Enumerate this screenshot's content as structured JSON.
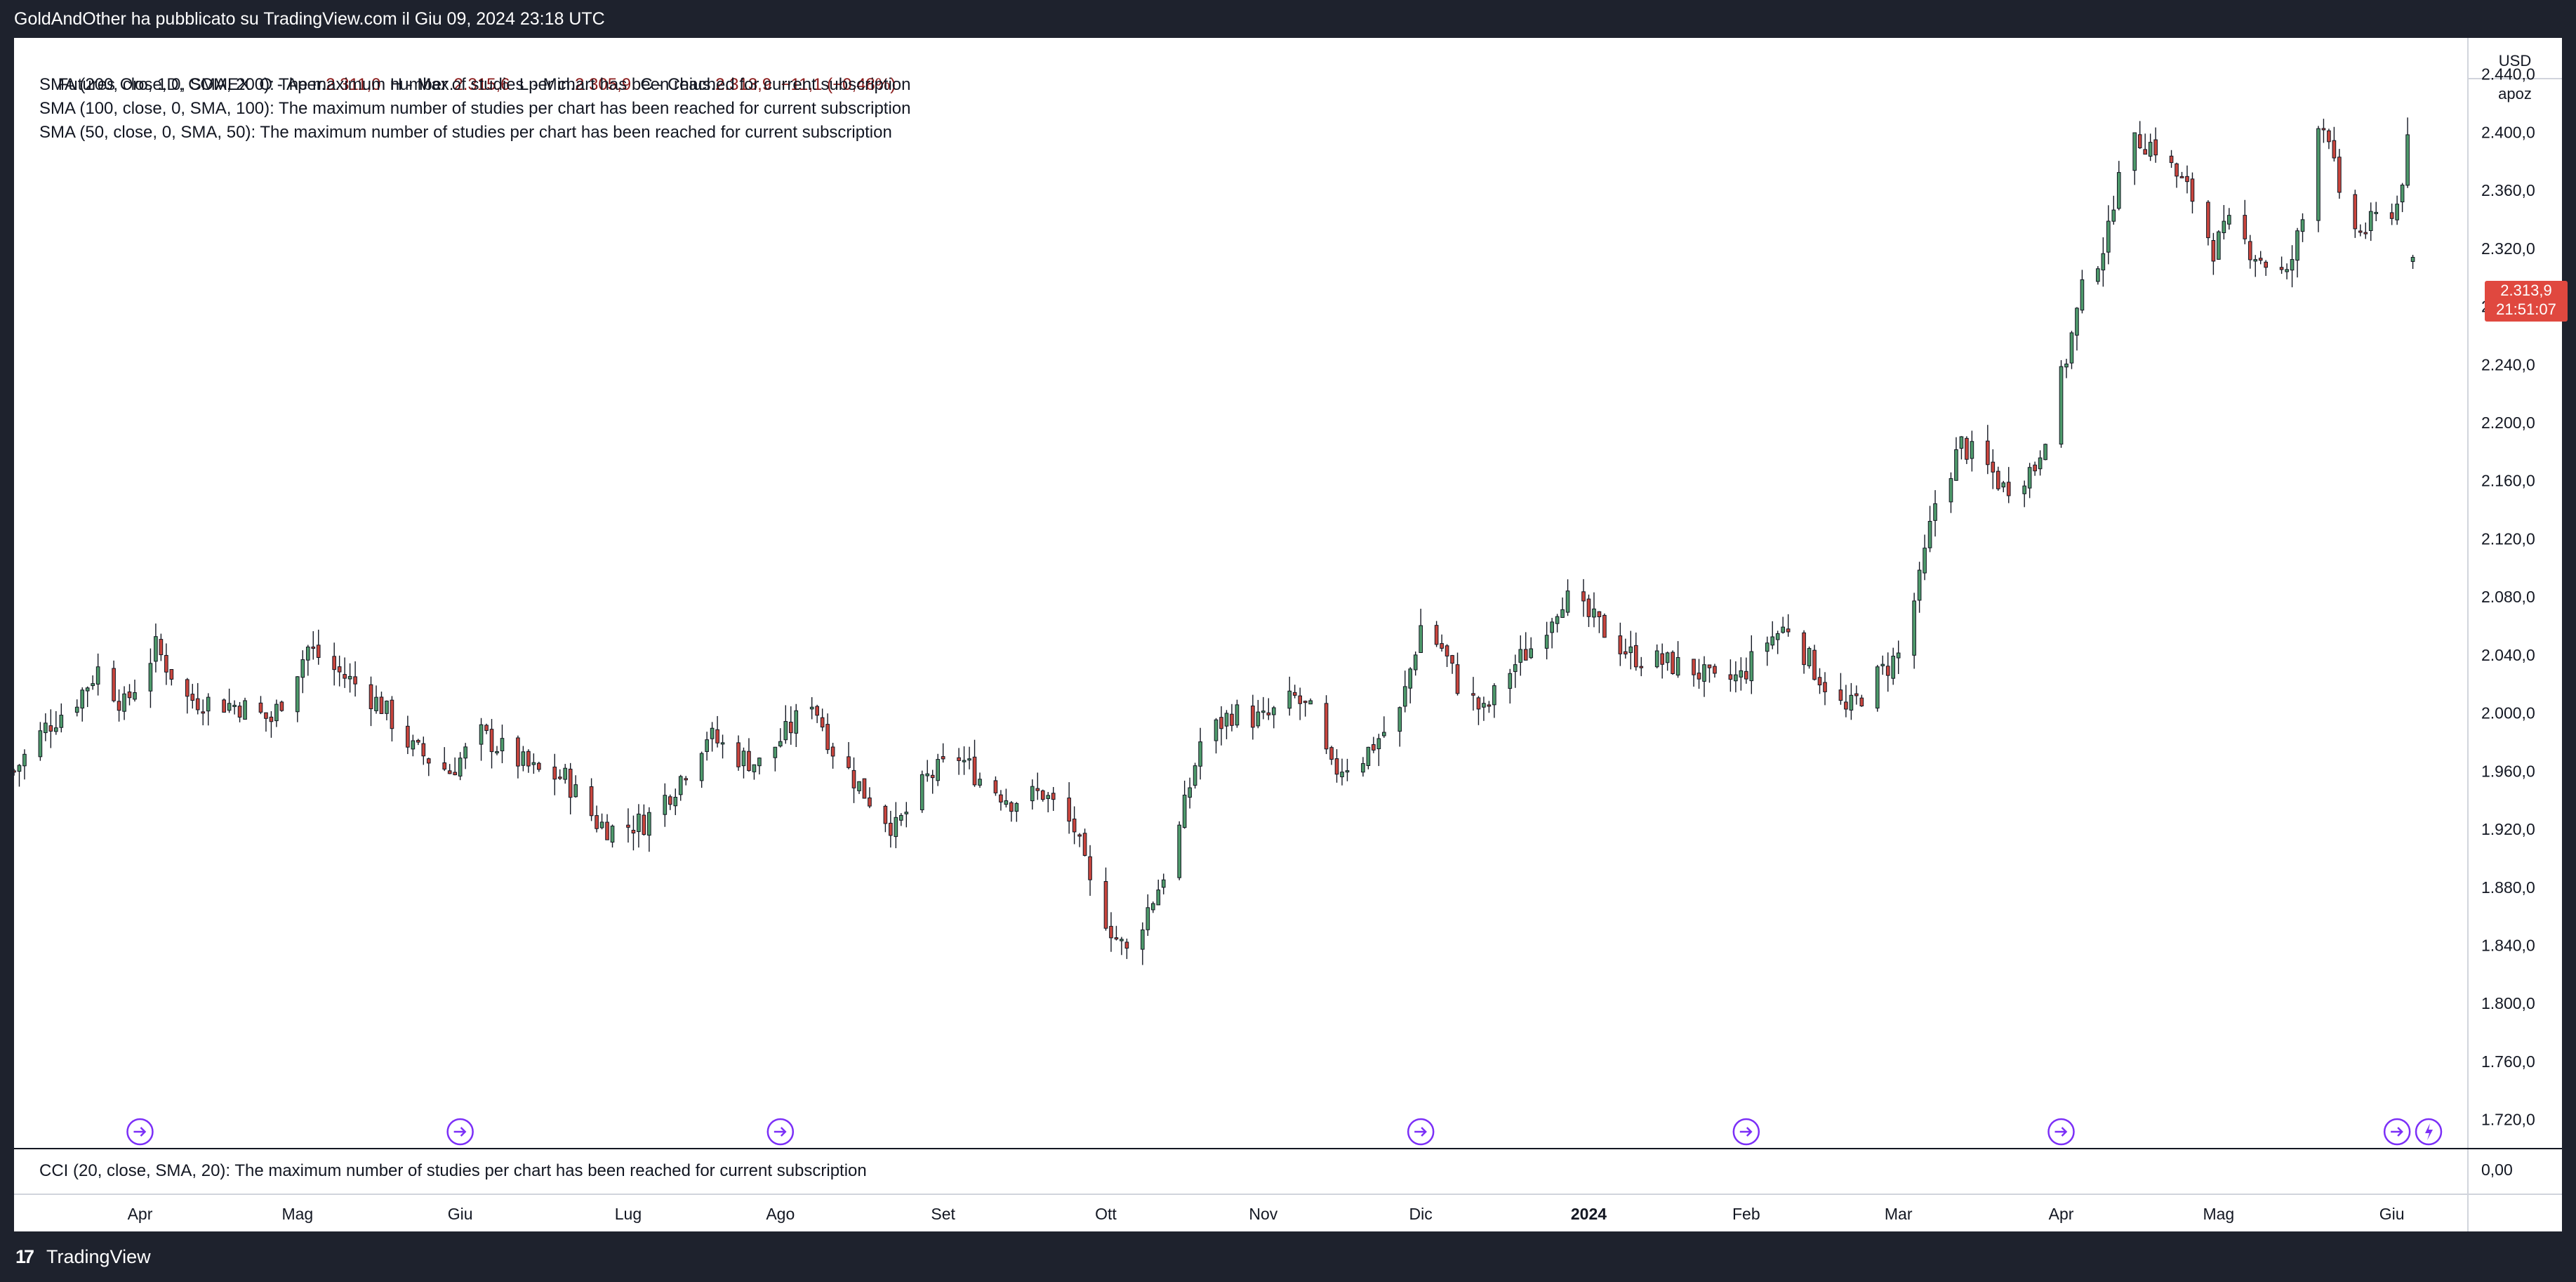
{
  "header": {
    "published": "GoldAndOther ha pubblicato su TradingView.com il Giu 09, 2024 23:18 UTC"
  },
  "legend": {
    "symbol": "Futures Oro, 1D, COMEX",
    "open_label": "O - Aper.",
    "open": "2.311,0",
    "high_label": "H - Max.",
    "high": "2.315,6",
    "low_label": "L - Min.",
    "low": "2.305,9",
    "close_label": "C - Chius.",
    "close": "2.313,9",
    "change": "−11,1 (−0,48%)",
    "studies": [
      "SMA (200, close, 0, SMA, 200): The maximum number of studies per chart has been reached for current subscription",
      "SMA (100, close, 0, SMA, 100): The maximum number of studies per chart has been reached for current subscription",
      "SMA (50, close, 0, SMA, 50): The maximum number of studies per chart has been reached for current subscription"
    ],
    "cci": "CCI (20, close, SMA, 20): The maximum number of studies per chart has been reached for current subscription"
  },
  "price_scale": {
    "currency": "USD",
    "label": "apoz",
    "cci_zero": "0,00"
  },
  "last_price": {
    "value": "2.313,9",
    "countdown": "21:51:07"
  },
  "footer": {
    "logo": "17",
    "brand": "TradingView"
  },
  "colors": {
    "up": "#4e9a6b",
    "down": "#c9453d",
    "marker": "#7b2ff7",
    "price_tag": "#e0483f"
  },
  "chart_data": {
    "type": "candlestick",
    "title": "Futures Oro, 1D, COMEX",
    "currency": "USD",
    "ylim": [
      1700,
      2465
    ],
    "y_ticks": [
      1720,
      1760,
      1800,
      1840,
      1880,
      1920,
      1960,
      2000,
      2040,
      2080,
      2120,
      2160,
      2200,
      2240,
      2280,
      2320,
      2360,
      2400,
      2440
    ],
    "y_tick_labels": [
      "1.720,0",
      "1.760,0",
      "1.800,0",
      "1.840,0",
      "1.880,0",
      "1.920,0",
      "1.960,0",
      "2.000,0",
      "2.040,0",
      "2.080,0",
      "2.120,0",
      "2.160,0",
      "2.200,0",
      "2.240,0",
      "2.280,0",
      "2.320,0",
      "2.360,0",
      "2.400,0",
      "2.440,0"
    ],
    "x_range": [
      "2023-03-08",
      "2024-06-10"
    ],
    "x_ticks": [
      {
        "label": "Apr",
        "date": "2023-04-01"
      },
      {
        "label": "Mag",
        "date": "2023-05-01"
      },
      {
        "label": "Giu",
        "date": "2023-06-01"
      },
      {
        "label": "Lug",
        "date": "2023-07-03"
      },
      {
        "label": "Ago",
        "date": "2023-08-01"
      },
      {
        "label": "Set",
        "date": "2023-09-01"
      },
      {
        "label": "Ott",
        "date": "2023-10-02"
      },
      {
        "label": "Nov",
        "date": "2023-11-01"
      },
      {
        "label": "Dic",
        "date": "2023-12-01"
      },
      {
        "label": "2024",
        "date": "2024-01-02",
        "bold": true
      },
      {
        "label": "Feb",
        "date": "2024-02-01"
      },
      {
        "label": "Mar",
        "date": "2024-03-01"
      },
      {
        "label": "Apr",
        "date": "2024-04-01"
      },
      {
        "label": "Mag",
        "date": "2024-05-01"
      },
      {
        "label": "Giu",
        "date": "2024-06-03"
      }
    ],
    "closes": [
      [
        "2023-03-08",
        1960
      ],
      [
        "2023-03-14",
        1990
      ],
      [
        "2023-03-20",
        2010
      ],
      [
        "2023-03-24",
        2030
      ],
      [
        "2023-03-29",
        2005
      ],
      [
        "2023-04-04",
        2045
      ],
      [
        "2023-04-10",
        2010
      ],
      [
        "2023-04-14",
        2008
      ],
      [
        "2023-04-20",
        2005
      ],
      [
        "2023-04-26",
        1995
      ],
      [
        "2023-05-03",
        2045
      ],
      [
        "2023-05-08",
        2030
      ],
      [
        "2023-05-12",
        2020
      ],
      [
        "2023-05-17",
        2005
      ],
      [
        "2023-05-23",
        1975
      ],
      [
        "2023-05-30",
        1960
      ],
      [
        "2023-06-05",
        1985
      ],
      [
        "2023-06-09",
        1975
      ],
      [
        "2023-06-15",
        1960
      ],
      [
        "2023-06-21",
        1955
      ],
      [
        "2023-06-27",
        1925
      ],
      [
        "2023-06-30",
        1920
      ],
      [
        "2023-07-06",
        1925
      ],
      [
        "2023-07-12",
        1950
      ],
      [
        "2023-07-18",
        1985
      ],
      [
        "2023-07-24",
        1970
      ],
      [
        "2023-07-28",
        1965
      ],
      [
        "2023-08-03",
        1990
      ],
      [
        "2023-08-07",
        2010
      ],
      [
        "2023-08-11",
        1975
      ],
      [
        "2023-08-17",
        1945
      ],
      [
        "2023-08-23",
        1920
      ],
      [
        "2023-08-29",
        1955
      ],
      [
        "2023-09-04",
        1970
      ],
      [
        "2023-09-08",
        1955
      ],
      [
        "2023-09-14",
        1940
      ],
      [
        "2023-09-20",
        1945
      ],
      [
        "2023-09-26",
        1920
      ],
      [
        "2023-09-29",
        1880
      ],
      [
        "2023-10-04",
        1845
      ],
      [
        "2023-10-06",
        1835
      ],
      [
        "2023-10-12",
        1880
      ],
      [
        "2023-10-16",
        1920
      ],
      [
        "2023-10-20",
        1980
      ],
      [
        "2023-10-26",
        2000
      ],
      [
        "2023-11-01",
        1995
      ],
      [
        "2023-11-07",
        2010
      ],
      [
        "2023-11-10",
        2000
      ],
      [
        "2023-11-14",
        1960
      ],
      [
        "2023-11-20",
        1970
      ],
      [
        "2023-11-27",
        2000
      ],
      [
        "2023-12-01",
        2060
      ],
      [
        "2023-12-05",
        2045
      ],
      [
        "2023-12-08",
        2020
      ],
      [
        "2023-12-13",
        2000
      ],
      [
        "2023-12-18",
        2030
      ],
      [
        "2023-12-22",
        2045
      ],
      [
        "2023-12-28",
        2080
      ],
      [
        "2024-01-04",
        2060
      ],
      [
        "2024-01-10",
        2040
      ],
      [
        "2024-01-16",
        2035
      ],
      [
        "2024-01-22",
        2030
      ],
      [
        "2024-01-26",
        2020
      ],
      [
        "2024-01-31",
        2025
      ],
      [
        "2024-02-05",
        2050
      ],
      [
        "2024-02-09",
        2060
      ],
      [
        "2024-02-14",
        2030
      ],
      [
        "2024-02-20",
        2000
      ],
      [
        "2024-02-26",
        2025
      ],
      [
        "2024-03-01",
        2040
      ],
      [
        "2024-03-05",
        2090
      ],
      [
        "2024-03-08",
        2145
      ],
      [
        "2024-03-13",
        2185
      ],
      [
        "2024-03-19",
        2165
      ],
      [
        "2024-03-21",
        2155
      ],
      [
        "2024-03-27",
        2170
      ],
      [
        "2024-04-01",
        2230
      ],
      [
        "2024-04-05",
        2290
      ],
      [
        "2024-04-10",
        2330
      ],
      [
        "2024-04-12",
        2380
      ],
      [
        "2024-04-16",
        2395
      ],
      [
        "2024-04-19",
        2390
      ],
      [
        "2024-04-23",
        2370
      ],
      [
        "2024-04-26",
        2355
      ],
      [
        "2024-04-30",
        2320
      ],
      [
        "2024-05-03",
        2335
      ],
      [
        "2024-05-07",
        2320
      ],
      [
        "2024-05-10",
        2310
      ],
      [
        "2024-05-14",
        2300
      ],
      [
        "2024-05-17",
        2340
      ],
      [
        "2024-05-20",
        2410
      ],
      [
        "2024-05-22",
        2400
      ],
      [
        "2024-05-24",
        2350
      ],
      [
        "2024-05-28",
        2330
      ],
      [
        "2024-05-31",
        2340
      ],
      [
        "2024-06-04",
        2350
      ],
      [
        "2024-06-06",
        2390
      ],
      [
        "2024-06-07",
        2314
      ]
    ],
    "events": [
      "2023-04-01",
      "2023-06-01",
      "2023-08-01",
      "2023-12-01",
      "2024-02-01",
      "2024-04-01",
      "2024-06-04"
    ],
    "lightning_event": "2024-06-10"
  }
}
